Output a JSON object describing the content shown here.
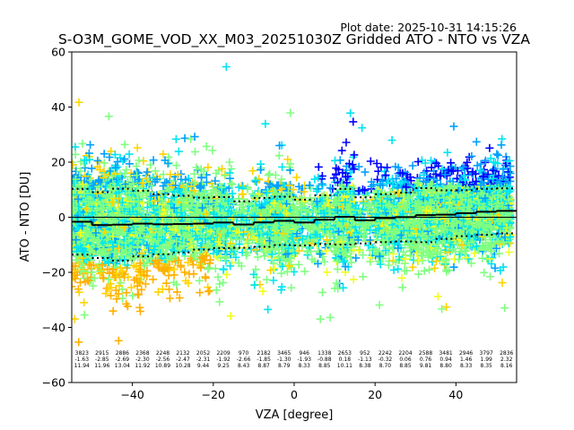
{
  "chart_data": {
    "type": "scatter",
    "title": "S-O3M_GOME_VOD_XX_M03_20251030Z Gridded ATO - NTO vs VZA",
    "plot_date": "Plot date: 2025-10-31 14:15:26",
    "xlabel": "VZA [degree]",
    "ylabel": "ATO - NTO [DU]",
    "xlim": [
      -55,
      55
    ],
    "ylim": [
      -60,
      60
    ],
    "xticks": [
      -40,
      -20,
      0,
      20,
      40
    ],
    "xtick_labels": [
      "−40",
      "−20",
      "0",
      "20",
      "40"
    ],
    "yticks": [
      -60,
      -40,
      -20,
      0,
      20,
      40,
      60
    ],
    "ytick_labels": [
      "−60",
      "−40",
      "−20",
      "0",
      "20",
      "40",
      "60"
    ],
    "grid": false,
    "marker": "+",
    "marker_colors": [
      "#0000ff",
      "#00a0ff",
      "#00e5f0",
      "#80ff80",
      "#f0ff20",
      "#ffd400",
      "#ffb000"
    ],
    "line_colors": {
      "mean": "#000000",
      "std": "#000000",
      "zero": "#000000"
    },
    "bin_width": 5,
    "bins": {
      "vza_center": [
        -52.5,
        -47.5,
        -42.5,
        -37.5,
        -32.5,
        -27.5,
        -22.5,
        -17.5,
        -12.5,
        -7.5,
        -2.5,
        2.5,
        7.5,
        12.5,
        17.5,
        22.5,
        27.5,
        32.5,
        37.5,
        42.5,
        47.5,
        52.5
      ],
      "count": [
        "3823",
        "2915",
        "2886",
        "2368",
        "2248",
        "2132",
        "2052",
        "2209",
        "970",
        "2182",
        "3465",
        "946",
        "1338",
        "2653",
        "952",
        "2242",
        "2204",
        "2588",
        "3481",
        "2946",
        "3797",
        "2836"
      ],
      "mean": [
        "-1.63",
        "-2.85",
        "-2.69",
        "-2.30",
        "-2.56",
        "-2.47",
        "-2.31",
        "-1.92",
        "-2.66",
        "-1.85",
        "-1.30",
        "-1.93",
        "-0.88",
        "0.18",
        "-1.13",
        "-0.32",
        "0.06",
        "0.76",
        "0.94",
        "1.46",
        "1.99",
        "2.32"
      ],
      "std": [
        "11.94",
        "11.96",
        "13.04",
        "11.92",
        "10.89",
        "10.28",
        "9.44",
        "9.25",
        "8.43",
        "8.87",
        "8.79",
        "8.33",
        "8.85",
        "10.11",
        "8.38",
        "8.70",
        "8.85",
        "9.81",
        "8.80",
        "8.33",
        "8.35",
        "8.16"
      ]
    }
  }
}
